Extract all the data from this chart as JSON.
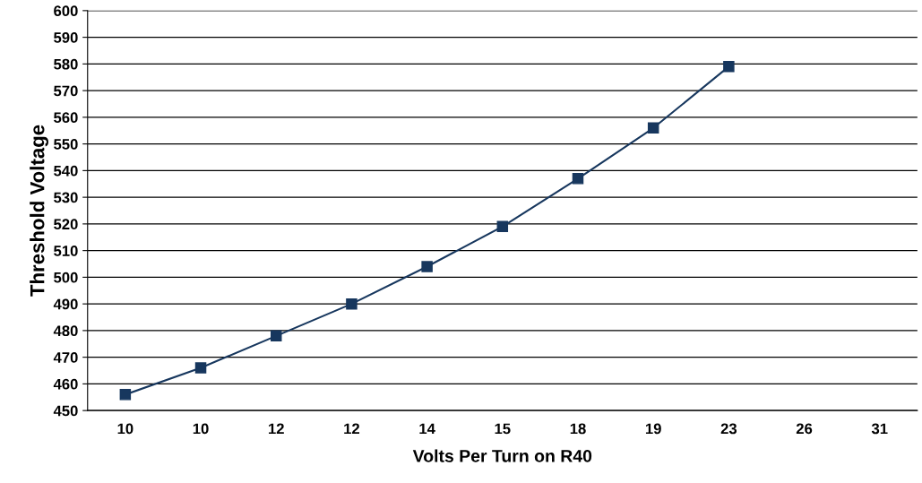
{
  "chart_data": {
    "type": "line",
    "xlabel": "Volts Per Turn on R40",
    "ylabel": "Threshold Voltage",
    "categories": [
      "10",
      "10",
      "12",
      "12",
      "14",
      "15",
      "18",
      "19",
      "23",
      "26",
      "31"
    ],
    "series": [
      {
        "color": "#17375e",
        "values": [
          456,
          466,
          478,
          490,
          504,
          519,
          537,
          556,
          579,
          null,
          null
        ]
      }
    ],
    "ylim": [
      450,
      600
    ],
    "yticks": [
      450,
      460,
      470,
      480,
      490,
      500,
      510,
      520,
      530,
      540,
      550,
      560,
      570,
      580,
      590,
      600
    ],
    "grid": "y",
    "marker": "square",
    "line_style": "solid",
    "legend": false
  }
}
